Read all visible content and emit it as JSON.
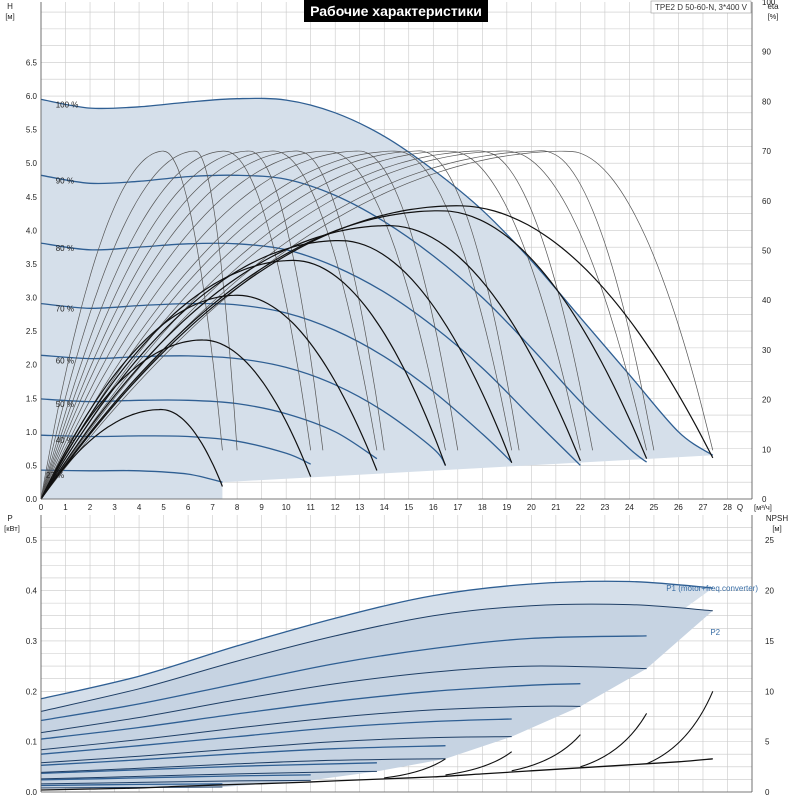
{
  "chart_data": [
    {
      "type": "line",
      "title": "Рабочие характеристики",
      "model": "TPE2 D 50-60-N, 3*400 V",
      "xlabel": "Q",
      "xunit": "[м³/ч]",
      "ylabel": "H",
      "yunit": "[м]",
      "y2label": "eta",
      "y2unit": "[%]",
      "xlim": [
        0,
        29
      ],
      "ylim": [
        0,
        7.4
      ],
      "y2lim": [
        0,
        100
      ],
      "xticks": [
        0,
        1,
        2,
        3,
        4,
        5,
        6,
        7,
        8,
        9,
        10,
        11,
        12,
        13,
        14,
        15,
        16,
        17,
        18,
        19,
        20,
        21,
        22,
        23,
        24,
        25,
        26,
        27,
        28
      ],
      "yticks": [
        0,
        0.5,
        1.0,
        1.5,
        2.0,
        2.5,
        3.0,
        3.5,
        4.0,
        4.5,
        5.0,
        5.5,
        6.0,
        6.5
      ],
      "y2ticks": [
        0,
        10,
        20,
        30,
        40,
        50,
        60,
        70,
        80,
        90,
        100
      ],
      "grid": true,
      "head_curves": [
        {
          "label": "100 %",
          "q": [
            0,
            2,
            4,
            6,
            8,
            10,
            12,
            14,
            16,
            18,
            20,
            22,
            24,
            26,
            27.4
          ],
          "h": [
            5.95,
            5.82,
            5.84,
            5.91,
            5.96,
            5.94,
            5.75,
            5.4,
            4.9,
            4.3,
            3.55,
            2.7,
            1.85,
            1.0,
            0.65
          ]
        },
        {
          "label": "90 %",
          "q": [
            0,
            2,
            4,
            6,
            8,
            10,
            12,
            14,
            16,
            18,
            20,
            22,
            24,
            24.7
          ],
          "h": [
            4.82,
            4.7,
            4.73,
            4.8,
            4.82,
            4.76,
            4.52,
            4.13,
            3.62,
            3.0,
            2.25,
            1.45,
            0.75,
            0.55
          ]
        },
        {
          "label": "80 %",
          "q": [
            0,
            2,
            4,
            6,
            8,
            10,
            12,
            14,
            16,
            18,
            20,
            22
          ],
          "h": [
            3.81,
            3.71,
            3.75,
            3.8,
            3.8,
            3.71,
            3.46,
            3.08,
            2.57,
            1.95,
            1.22,
            0.5
          ]
        },
        {
          "label": "70 %",
          "q": [
            0,
            2,
            4,
            6,
            8,
            10,
            12,
            14,
            16,
            18,
            19.2
          ],
          "h": [
            2.91,
            2.84,
            2.88,
            2.91,
            2.89,
            2.77,
            2.51,
            2.12,
            1.6,
            0.97,
            0.55
          ]
        },
        {
          "label": "60 %",
          "q": [
            0,
            2,
            4,
            6,
            8,
            10,
            12,
            14,
            16,
            16.5
          ],
          "h": [
            2.14,
            2.09,
            2.12,
            2.13,
            2.09,
            1.96,
            1.7,
            1.3,
            0.75,
            0.5
          ]
        },
        {
          "label": "50 %",
          "q": [
            0,
            2,
            4,
            6,
            8,
            10,
            12,
            13.7
          ],
          "h": [
            1.49,
            1.45,
            1.47,
            1.47,
            1.42,
            1.27,
            1.0,
            0.6
          ]
        },
        {
          "label": "40 %",
          "q": [
            0,
            2,
            4,
            6,
            8,
            10,
            11
          ],
          "h": [
            0.95,
            0.93,
            0.94,
            0.93,
            0.86,
            0.68,
            0.52
          ]
        },
        {
          "label": "27 %",
          "q": [
            0,
            2,
            4,
            6,
            7.4
          ],
          "h": [
            0.43,
            0.42,
            0.42,
            0.37,
            0.25
          ]
        }
      ],
      "eta_peaks": [
        {
          "q_best": 5.0,
          "q_max": 7.4,
          "eta_max": 70
        },
        {
          "q_best": 6.3,
          "q_max": 8.0,
          "eta_max": 70
        },
        {
          "q_best": 7.5,
          "q_max": 11.0,
          "eta_max": 70
        },
        {
          "q_best": 8.5,
          "q_max": 11.5,
          "eta_max": 70
        },
        {
          "q_best": 9.5,
          "q_max": 13.7,
          "eta_max": 70
        },
        {
          "q_best": 10.5,
          "q_max": 14.0,
          "eta_max": 70
        },
        {
          "q_best": 11.7,
          "q_max": 16.5,
          "eta_max": 70
        },
        {
          "q_best": 13.0,
          "q_max": 17.0,
          "eta_max": 70
        },
        {
          "q_best": 14.5,
          "q_max": 19.2,
          "eta_max": 70
        },
        {
          "q_best": 15.5,
          "q_max": 19.5,
          "eta_max": 70
        },
        {
          "q_best": 16.7,
          "q_max": 22.0,
          "eta_max": 70
        },
        {
          "q_best": 18.0,
          "q_max": 22.5,
          "eta_max": 70
        },
        {
          "q_best": 19.0,
          "q_max": 24.7,
          "eta_max": 70
        },
        {
          "q_best": 20.5,
          "q_max": 25.0,
          "eta_max": 70
        },
        {
          "q_best": 21.5,
          "q_max": 27.4,
          "eta_max": 70
        }
      ],
      "eta_total": [
        {
          "q_best": 4.9,
          "q_max": 7.4,
          "eta_max": 18
        },
        {
          "q_best": 6.6,
          "q_max": 11.0,
          "eta_max": 32
        },
        {
          "q_best": 8.0,
          "q_max": 13.7,
          "eta_max": 41
        },
        {
          "q_best": 10.3,
          "q_max": 16.5,
          "eta_max": 48
        },
        {
          "q_best": 12.2,
          "q_max": 19.2,
          "eta_max": 52
        },
        {
          "q_best": 14.2,
          "q_max": 22.0,
          "eta_max": 55
        },
        {
          "q_best": 16.3,
          "q_max": 24.7,
          "eta_max": 58
        },
        {
          "q_best": 17.0,
          "q_max": 27.4,
          "eta_max": 59
        }
      ]
    },
    {
      "type": "line",
      "xlabel": "Q",
      "xunit": "[м³/ч]",
      "ylabel": "P",
      "yunit": "[кВт]",
      "y2label": "NPSH",
      "y2unit": "[м]",
      "xlim": [
        0,
        29
      ],
      "ylim": [
        0,
        0.55
      ],
      "y2lim": [
        0,
        27.5
      ],
      "yticks": [
        0,
        0.1,
        0.2,
        0.3,
        0.4,
        0.5
      ],
      "y2ticks": [
        0,
        5,
        10,
        15,
        20,
        25
      ],
      "grid": true,
      "series_labels": [
        "P1 (motor+freq.converter)",
        "P2"
      ],
      "p1_curves": [
        {
          "q": [
            0,
            4,
            8,
            12,
            16,
            20,
            24,
            27.4
          ],
          "p": [
            0.185,
            0.23,
            0.29,
            0.345,
            0.39,
            0.413,
            0.418,
            0.405
          ]
        },
        {
          "q": [
            0,
            4,
            8,
            12,
            16,
            20,
            24.7
          ],
          "p": [
            0.142,
            0.175,
            0.215,
            0.255,
            0.285,
            0.305,
            0.31
          ]
        },
        {
          "q": [
            0,
            4,
            8,
            12,
            16,
            20,
            22
          ],
          "p": [
            0.105,
            0.128,
            0.155,
            0.18,
            0.2,
            0.212,
            0.215
          ]
        },
        {
          "q": [
            0,
            4,
            8,
            12,
            16,
            19.2
          ],
          "p": [
            0.075,
            0.092,
            0.11,
            0.128,
            0.14,
            0.145
          ]
        },
        {
          "q": [
            0,
            4,
            8,
            12,
            16.5
          ],
          "p": [
            0.053,
            0.064,
            0.076,
            0.086,
            0.092
          ]
        },
        {
          "q": [
            0,
            4,
            8,
            12,
            13.7
          ],
          "p": [
            0.037,
            0.044,
            0.051,
            0.056,
            0.058
          ]
        },
        {
          "q": [
            0,
            4,
            8,
            11
          ],
          "p": [
            0.024,
            0.028,
            0.032,
            0.034
          ]
        },
        {
          "q": [
            0,
            4,
            7.4
          ],
          "p": [
            0.013,
            0.015,
            0.016
          ]
        }
      ],
      "p2_curves": [
        {
          "q": [
            0,
            4,
            8,
            12,
            16,
            20,
            24,
            27.4
          ],
          "p": [
            0.16,
            0.205,
            0.26,
            0.31,
            0.35,
            0.37,
            0.372,
            0.36
          ]
        },
        {
          "q": [
            0,
            4,
            8,
            12,
            16,
            20,
            24.7
          ],
          "p": [
            0.118,
            0.148,
            0.183,
            0.215,
            0.238,
            0.25,
            0.245
          ]
        },
        {
          "q": [
            0,
            4,
            8,
            12,
            16,
            20,
            22
          ],
          "p": [
            0.084,
            0.104,
            0.127,
            0.148,
            0.163,
            0.17,
            0.17
          ]
        },
        {
          "q": [
            0,
            4,
            8,
            12,
            16,
            19.2
          ],
          "p": [
            0.058,
            0.071,
            0.086,
            0.1,
            0.108,
            0.11
          ]
        },
        {
          "q": [
            0,
            4,
            8,
            12,
            16.5
          ],
          "p": [
            0.039,
            0.047,
            0.056,
            0.063,
            0.066
          ]
        },
        {
          "q": [
            0,
            4,
            8,
            12,
            13.7
          ],
          "p": [
            0.026,
            0.031,
            0.036,
            0.04,
            0.041
          ]
        },
        {
          "q": [
            0,
            4,
            8,
            11
          ],
          "p": [
            0.016,
            0.019,
            0.022,
            0.023
          ]
        },
        {
          "q": [
            0,
            4,
            7.4
          ],
          "p": [
            0.008,
            0.009,
            0.01
          ]
        }
      ],
      "npsh_curve": {
        "q": [
          0,
          2,
          4,
          6,
          8,
          10,
          12,
          14,
          16,
          18,
          20,
          22,
          24,
          26,
          27.4
        ],
        "npsh": [
          0.2,
          0.3,
          0.4,
          0.6,
          0.75,
          0.9,
          1.1,
          1.3,
          1.5,
          1.8,
          2.1,
          2.4,
          2.7,
          3.0,
          3.3
        ]
      },
      "npsh_rises": [
        {
          "q": [
            14.0,
            16.5
          ],
          "npsh": [
            1.4,
            3.3
          ]
        },
        {
          "q": [
            16.5,
            19.2
          ],
          "npsh": [
            1.7,
            4.0
          ]
        },
        {
          "q": [
            19.2,
            22.0
          ],
          "npsh": [
            2.1,
            5.7
          ]
        },
        {
          "q": [
            22.0,
            24.7
          ],
          "npsh": [
            2.5,
            7.8
          ]
        },
        {
          "q": [
            24.7,
            27.4
          ],
          "npsh": [
            2.8,
            10.0
          ]
        }
      ]
    }
  ]
}
